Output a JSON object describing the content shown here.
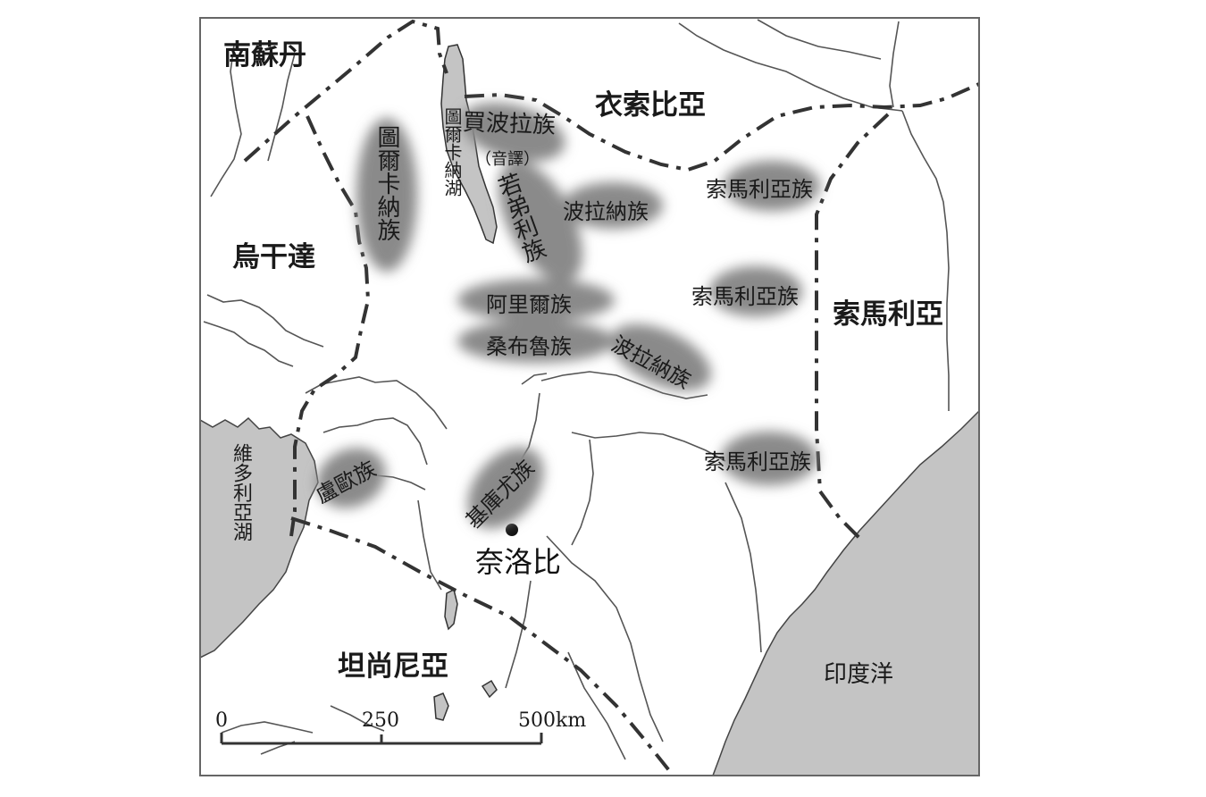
{
  "countries": {
    "south_sudan": "南蘇丹",
    "ethiopia": "衣索比亞",
    "uganda": "烏干達",
    "somalia": "索馬利亞",
    "tanzania": "坦尚尼亞"
  },
  "tribes": {
    "turkana": "圖爾卡納族",
    "dassanech": "買波拉族",
    "dassanech_note": "（音譯）",
    "samburu_vertical": "若弟利族",
    "borana_north": "波拉納族",
    "somali_1": "索馬利亞族",
    "somali_2": "索馬利亞族",
    "somali_3": "索馬利亞族",
    "ariaal": "阿里爾族",
    "samburu": "桑布魯族",
    "borana_south": "波拉納族",
    "luo": "盧歐族",
    "kikuyu": "基庫尤族"
  },
  "waters": {
    "lake_turkana": "圖爾卡納湖",
    "lake_victoria": "維多利亞湖",
    "indian_ocean": "印度洋"
  },
  "city": {
    "nairobi": "奈洛比"
  },
  "scale": {
    "zero": "0",
    "mid": "250",
    "end": "500km"
  },
  "colors": {
    "water": "#c4c4c4",
    "tribe_zone": "#8a8a8a",
    "border": "#333333",
    "river": "#555555"
  }
}
